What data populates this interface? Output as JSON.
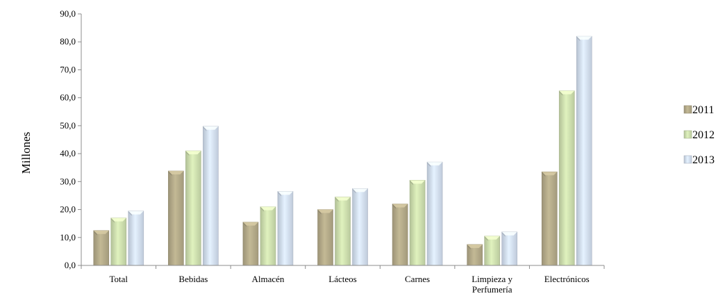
{
  "chart_data": {
    "type": "bar",
    "title": "",
    "xlabel": "",
    "ylabel": "Millones",
    "ylim": [
      0,
      90
    ],
    "yticks": [
      "0,0",
      "10,0",
      "20,0",
      "30,0",
      "40,0",
      "50,0",
      "60,0",
      "70,0",
      "80,0",
      "90,0"
    ],
    "categories": [
      "Total",
      "Bebidas",
      "Almacén",
      "Lácteos",
      "Carnes",
      "Limpieza y Perfumería",
      "Electrónicos"
    ],
    "category_lines": [
      [
        "Total"
      ],
      [
        "Bebidas"
      ],
      [
        "Almacén"
      ],
      [
        "Lácteos"
      ],
      [
        "Carnes"
      ],
      [
        "Limpieza y",
        "Perfumería"
      ],
      [
        "Electrónicos"
      ]
    ],
    "series": [
      {
        "name": "2011",
        "color": "#b5ab8a",
        "values": [
          12.5,
          33.8,
          15.5,
          20.0,
          22.0,
          7.5,
          33.5
        ]
      },
      {
        "name": "2012",
        "color": "#cfe0b0",
        "values": [
          17.0,
          41.0,
          21.0,
          24.5,
          30.5,
          10.5,
          62.5
        ]
      },
      {
        "name": "2013",
        "color": "#d4e0f2",
        "values": [
          19.5,
          49.8,
          26.5,
          27.5,
          37.0,
          12.0,
          82.0
        ]
      }
    ],
    "legend_position": "right",
    "grid": false
  }
}
